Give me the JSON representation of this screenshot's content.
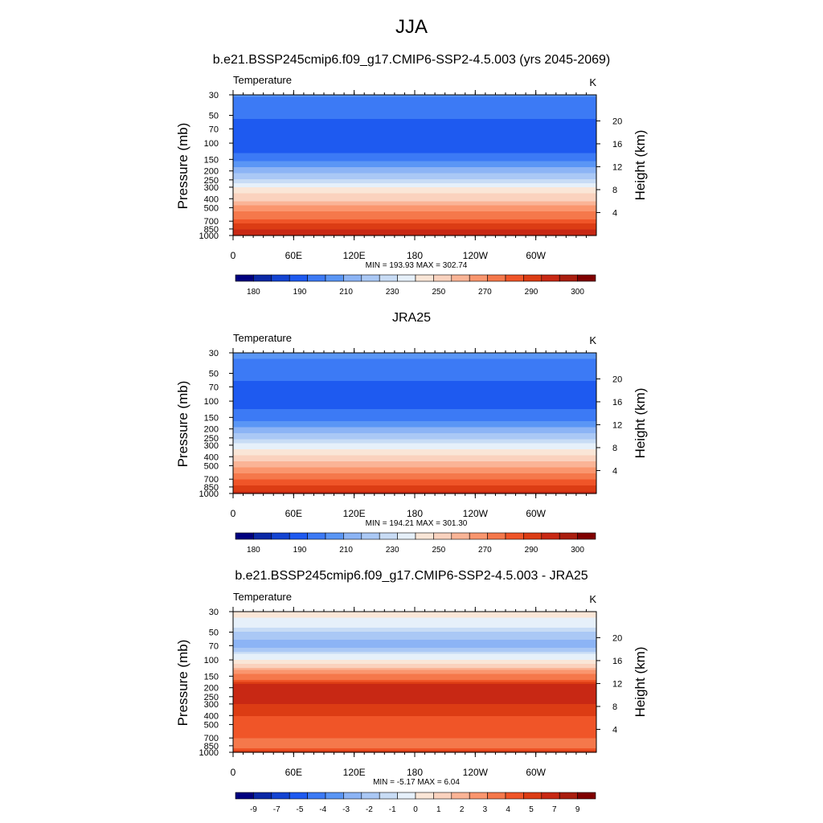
{
  "main_title": "JJA",
  "palette": [
    "#00007f",
    "#0a28a6",
    "#1444d2",
    "#1e5af0",
    "#3c7af5",
    "#5a96f5",
    "#8cb4f5",
    "#aac8f5",
    "#c8dcf5",
    "#e6f0fa",
    "#fae6d7",
    "#fad2be",
    "#fab496",
    "#fa966e",
    "#f5784b",
    "#f05528",
    "#dc3c14",
    "#c82814",
    "#aa1e0f",
    "#800000"
  ],
  "chart_data": [
    {
      "type": "heatmap",
      "title": "b.e21.BSSP245cmip6.f09_g17.CMIP6-SSP2-4.5.003 (yrs 2045-2069)",
      "left_label": "Temperature",
      "units": "K",
      "ylabel": "Pressure (mb)",
      "ylabel_right": "Height (km)",
      "x_ticks": [
        "0",
        "60E",
        "120E",
        "180",
        "120W",
        "60W"
      ],
      "y_ticks": [
        "30",
        "50",
        "70",
        "100",
        "150",
        "200",
        "250",
        "300",
        "400",
        "500",
        "700",
        "850",
        "1000"
      ],
      "y_ticks_right": [
        "20",
        "16",
        "12",
        "8",
        "4"
      ],
      "min": "193.93",
      "max": "302.74",
      "min_max_label": "MIN = 193.93  MAX = 302.74",
      "colorbar_labels": [
        "180",
        "190",
        "210",
        "230",
        "250",
        "270",
        "290",
        "300"
      ],
      "profile": [
        {
          "p": 30,
          "v": 209
        },
        {
          "p": 50,
          "v": 202
        },
        {
          "p": 70,
          "v": 198
        },
        {
          "p": 100,
          "v": 196
        },
        {
          "p": 150,
          "v": 205
        },
        {
          "p": 200,
          "v": 219
        },
        {
          "p": 250,
          "v": 231
        },
        {
          "p": 300,
          "v": 242
        },
        {
          "p": 400,
          "v": 255
        },
        {
          "p": 500,
          "v": 266
        },
        {
          "p": 700,
          "v": 281
        },
        {
          "p": 850,
          "v": 291
        },
        {
          "p": 1000,
          "v": 299
        }
      ]
    },
    {
      "type": "heatmap",
      "title": "JRA25",
      "left_label": "Temperature",
      "units": "K",
      "ylabel": "Pressure (mb)",
      "ylabel_right": "Height (km)",
      "x_ticks": [
        "0",
        "60E",
        "120E",
        "180",
        "120W",
        "60W"
      ],
      "y_ticks": [
        "30",
        "50",
        "70",
        "100",
        "150",
        "200",
        "250",
        "300",
        "400",
        "500",
        "700",
        "850",
        "1000"
      ],
      "y_ticks_right": [
        "20",
        "16",
        "12",
        "8",
        "4"
      ],
      "min": "194.21",
      "max": "301.30",
      "min_max_label": "MIN = 194.21  MAX = 301.30",
      "colorbar_labels": [
        "180",
        "190",
        "210",
        "230",
        "250",
        "270",
        "290",
        "300"
      ],
      "profile": [
        {
          "p": 30,
          "v": 210
        },
        {
          "p": 50,
          "v": 203
        },
        {
          "p": 70,
          "v": 199
        },
        {
          "p": 100,
          "v": 197
        },
        {
          "p": 150,
          "v": 205
        },
        {
          "p": 200,
          "v": 217
        },
        {
          "p": 250,
          "v": 228
        },
        {
          "p": 300,
          "v": 238
        },
        {
          "p": 400,
          "v": 251
        },
        {
          "p": 500,
          "v": 262
        },
        {
          "p": 700,
          "v": 277
        },
        {
          "p": 850,
          "v": 287
        },
        {
          "p": 1000,
          "v": 295
        }
      ]
    },
    {
      "type": "heatmap",
      "title": "b.e21.BSSP245cmip6.f09_g17.CMIP6-SSP2-4.5.003 - JRA25",
      "left_label": "Temperature",
      "units": "K",
      "ylabel": "Pressure (mb)",
      "ylabel_right": "Height (km)",
      "x_ticks": [
        "0",
        "60E",
        "120E",
        "180",
        "120W",
        "60W"
      ],
      "y_ticks": [
        "30",
        "50",
        "70",
        "100",
        "150",
        "200",
        "250",
        "300",
        "400",
        "500",
        "700",
        "850",
        "1000"
      ],
      "y_ticks_right": [
        "20",
        "16",
        "12",
        "8",
        "4"
      ],
      "min": "-5.17",
      "max": "6.04",
      "min_max_label": "MIN =  -5.17  MAX =   6.04",
      "colorbar_labels": [
        "-9",
        "-7",
        "-5",
        "-4",
        "-3",
        "-2",
        "-1",
        "0",
        "1",
        "2",
        "3",
        "4",
        "5",
        "7",
        "9"
      ],
      "profile": [
        {
          "p": 30,
          "v": -1.5
        },
        {
          "p": 50,
          "v": -3.5
        },
        {
          "p": 70,
          "v": -4.5
        },
        {
          "p": 100,
          "v": -2
        },
        {
          "p": 150,
          "v": 2.5
        },
        {
          "p": 200,
          "v": 4.5
        },
        {
          "p": 250,
          "v": 4.3
        },
        {
          "p": 300,
          "v": 4
        },
        {
          "p": 400,
          "v": 3.5
        },
        {
          "p": 500,
          "v": 3.5
        },
        {
          "p": 700,
          "v": 3
        },
        {
          "p": 850,
          "v": 2.5
        },
        {
          "p": 1000,
          "v": 4
        }
      ]
    }
  ]
}
